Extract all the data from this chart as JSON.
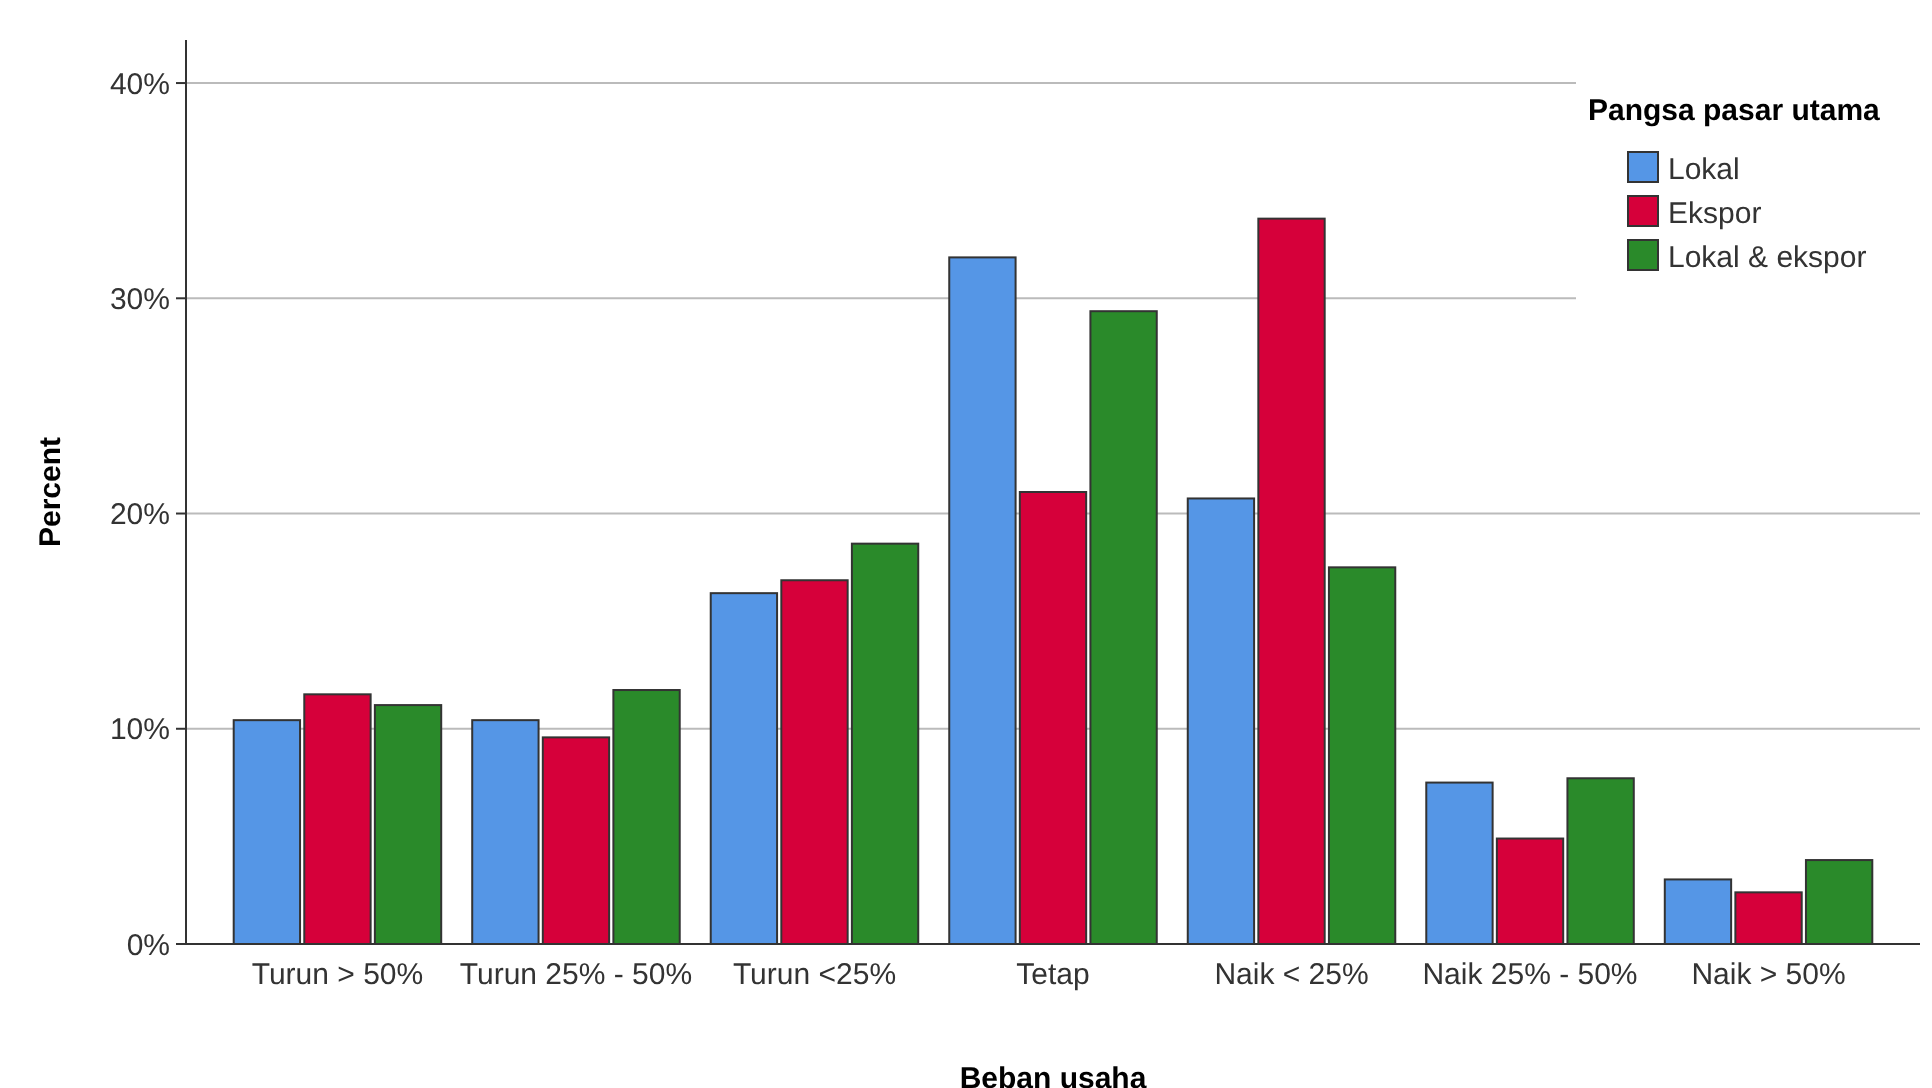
{
  "chart_data": {
    "type": "bar",
    "xlabel": "Beban usaha",
    "ylabel": "Percent",
    "legend_title": "Pangsa pasar utama",
    "legend": "top right",
    "grid": "y",
    "categories": [
      "Turun > 50%",
      "Turun 25% - 50%",
      "Turun <25%",
      "Tetap",
      "Naik < 25%",
      "Naik 25% - 50%",
      "Naik > 50%"
    ],
    "ylim": [
      0,
      42
    ],
    "yticks": [
      {
        "value": 0,
        "label": "0%"
      },
      {
        "value": 10,
        "label": "10%"
      },
      {
        "value": 20,
        "label": "20%"
      },
      {
        "value": 30,
        "label": "30%"
      },
      {
        "value": 40,
        "label": "40%"
      }
    ],
    "series": [
      {
        "name": "Lokal",
        "color": "#5596e6",
        "values": [
          10.4,
          10.4,
          16.3,
          31.9,
          20.7,
          7.5,
          3.0
        ]
      },
      {
        "name": "Ekspor",
        "color": "#d6003a",
        "values": [
          11.6,
          9.6,
          16.9,
          21.0,
          33.7,
          4.9,
          2.4
        ]
      },
      {
        "name": "Lokal & ekspor",
        "color": "#2a8a2a",
        "values": [
          11.1,
          11.8,
          18.6,
          29.4,
          17.5,
          7.7,
          3.9
        ]
      }
    ]
  }
}
